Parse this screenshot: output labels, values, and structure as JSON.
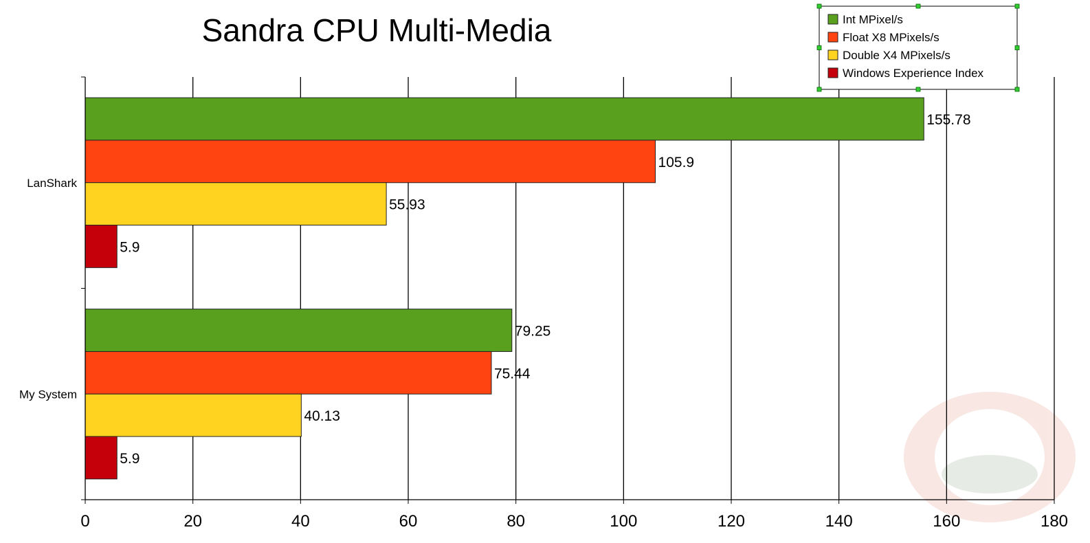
{
  "chart_data": {
    "type": "bar",
    "orientation": "horizontal",
    "title": "Sandra CPU Multi-Media",
    "xlabel": "",
    "ylabel": "",
    "categories": [
      "LanShark",
      "My System"
    ],
    "series": [
      {
        "name": "Int  MPixel/s",
        "color": "#58a01e",
        "values": [
          155.78,
          79.25
        ],
        "labels": [
          "155.78",
          "79.25"
        ]
      },
      {
        "name": "Float X8 MPixels/s",
        "color": "#ff4411",
        "values": [
          105.9,
          75.44
        ],
        "labels": [
          "105.9",
          "75.44"
        ]
      },
      {
        "name": "Double X4 MPixels/s",
        "color": "#ffd320",
        "values": [
          55.93,
          40.13
        ],
        "labels": [
          "55.93",
          "40.13"
        ]
      },
      {
        "name": "Windows Experience Index",
        "color": "#c5000b",
        "values": [
          5.9,
          5.9
        ],
        "labels": [
          "5.9",
          "5.9"
        ]
      }
    ],
    "xlim": [
      0,
      180
    ],
    "xticks": [
      "0",
      "20",
      "40",
      "60",
      "80",
      "100",
      "120",
      "140",
      "160",
      "180"
    ],
    "grid": true,
    "legend_position": "top-right"
  }
}
